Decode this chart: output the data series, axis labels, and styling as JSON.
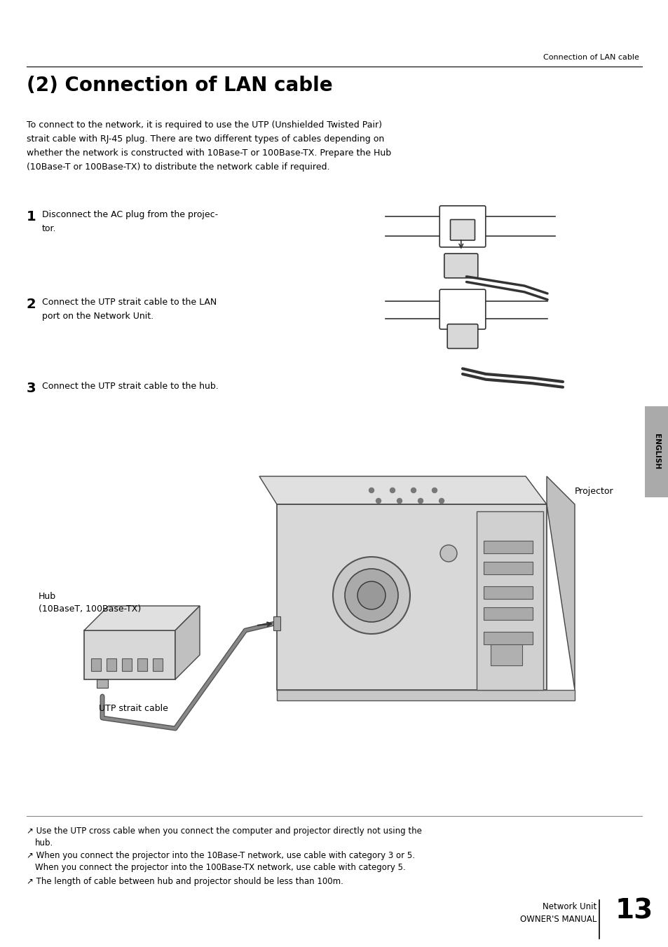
{
  "page_bg": "#ffffff",
  "header_text": "Connection of LAN cable",
  "title": "(2) Connection of LAN cable",
  "intro_text": "To connect to the network, it is required to use the UTP (Unshielded Twisted Pair)\nstrait cable with RJ-45 plug. There are two different types of cables depending on\nwhether the network is constructed with 10Base-T or 100Base-TX. Prepare the Hub\n(10Base-T or 100Base-TX) to distribute the network cable if required.",
  "step1_num": "1",
  "step1_text": "Disconnect the AC plug from the projec-\ntor.",
  "step2_num": "2",
  "step2_text": "Connect the UTP strait cable to the LAN\nport on the Network Unit.",
  "step3_num": "3",
  "step3_text": "Connect the UTP strait cable to the hub.",
  "label_projector": "Projector",
  "label_hub": "Hub\n(10BaseT, 100Base-TX)",
  "label_utp": "UTP strait cable",
  "note1_line1": "↗ Use the UTP cross cable when you connect the computer and projector directly not using the",
  "note1_line2": "   hub.",
  "note2_line1": "↗ When you connect the projector into the 10Base-T network, use cable with category 3 or 5.",
  "note2_line2": "   When you connect the projector into the 100Base-TX network, use cable with category 5.",
  "note3": "↗ The length of cable between hub and projector should be less than 100m.",
  "footer_label1": "Network Unit",
  "footer_label2": "OWNER'S MANUAL",
  "footer_page": "13",
  "english_tab_color": "#b8b8b8",
  "english_tab_text": "ENGLISH",
  "tab_color": "#aaaaaa",
  "line_color": "#000000",
  "text_color": "#000000",
  "gray_light": "#e0e0e0",
  "gray_mid": "#cccccc",
  "gray_dark": "#888888"
}
